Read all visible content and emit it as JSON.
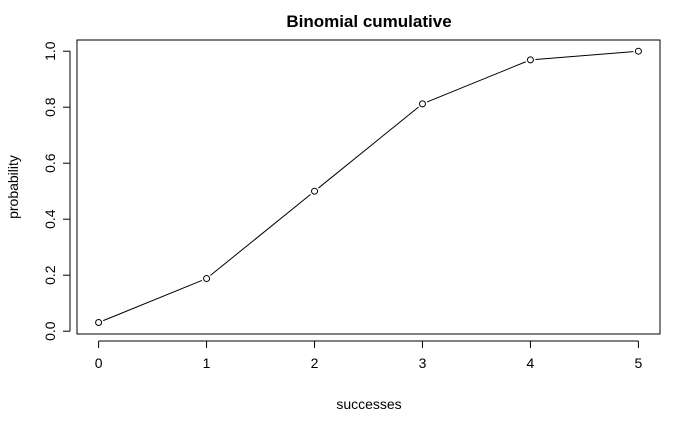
{
  "chart_data": {
    "type": "line",
    "title": "Binomial cumulative",
    "xlabel": "successes",
    "ylabel": "probability",
    "x": [
      0,
      1,
      2,
      3,
      4,
      5
    ],
    "series": [
      {
        "values": [
          0.031,
          0.188,
          0.5,
          0.812,
          0.969,
          1.0
        ]
      }
    ],
    "xticks": [
      0,
      1,
      2,
      3,
      4,
      5
    ],
    "yticks": [
      0.0,
      0.2,
      0.4,
      0.6,
      0.8,
      1.0
    ],
    "ytick_labels": [
      "0.0",
      "0.2",
      "0.4",
      "0.6",
      "0.8",
      "1.0"
    ],
    "xlim": [
      -0.2,
      5.2
    ],
    "ylim": [
      -0.01,
      1.04
    ],
    "grid": false,
    "marker": "open-circle",
    "line_color": "#000000"
  }
}
